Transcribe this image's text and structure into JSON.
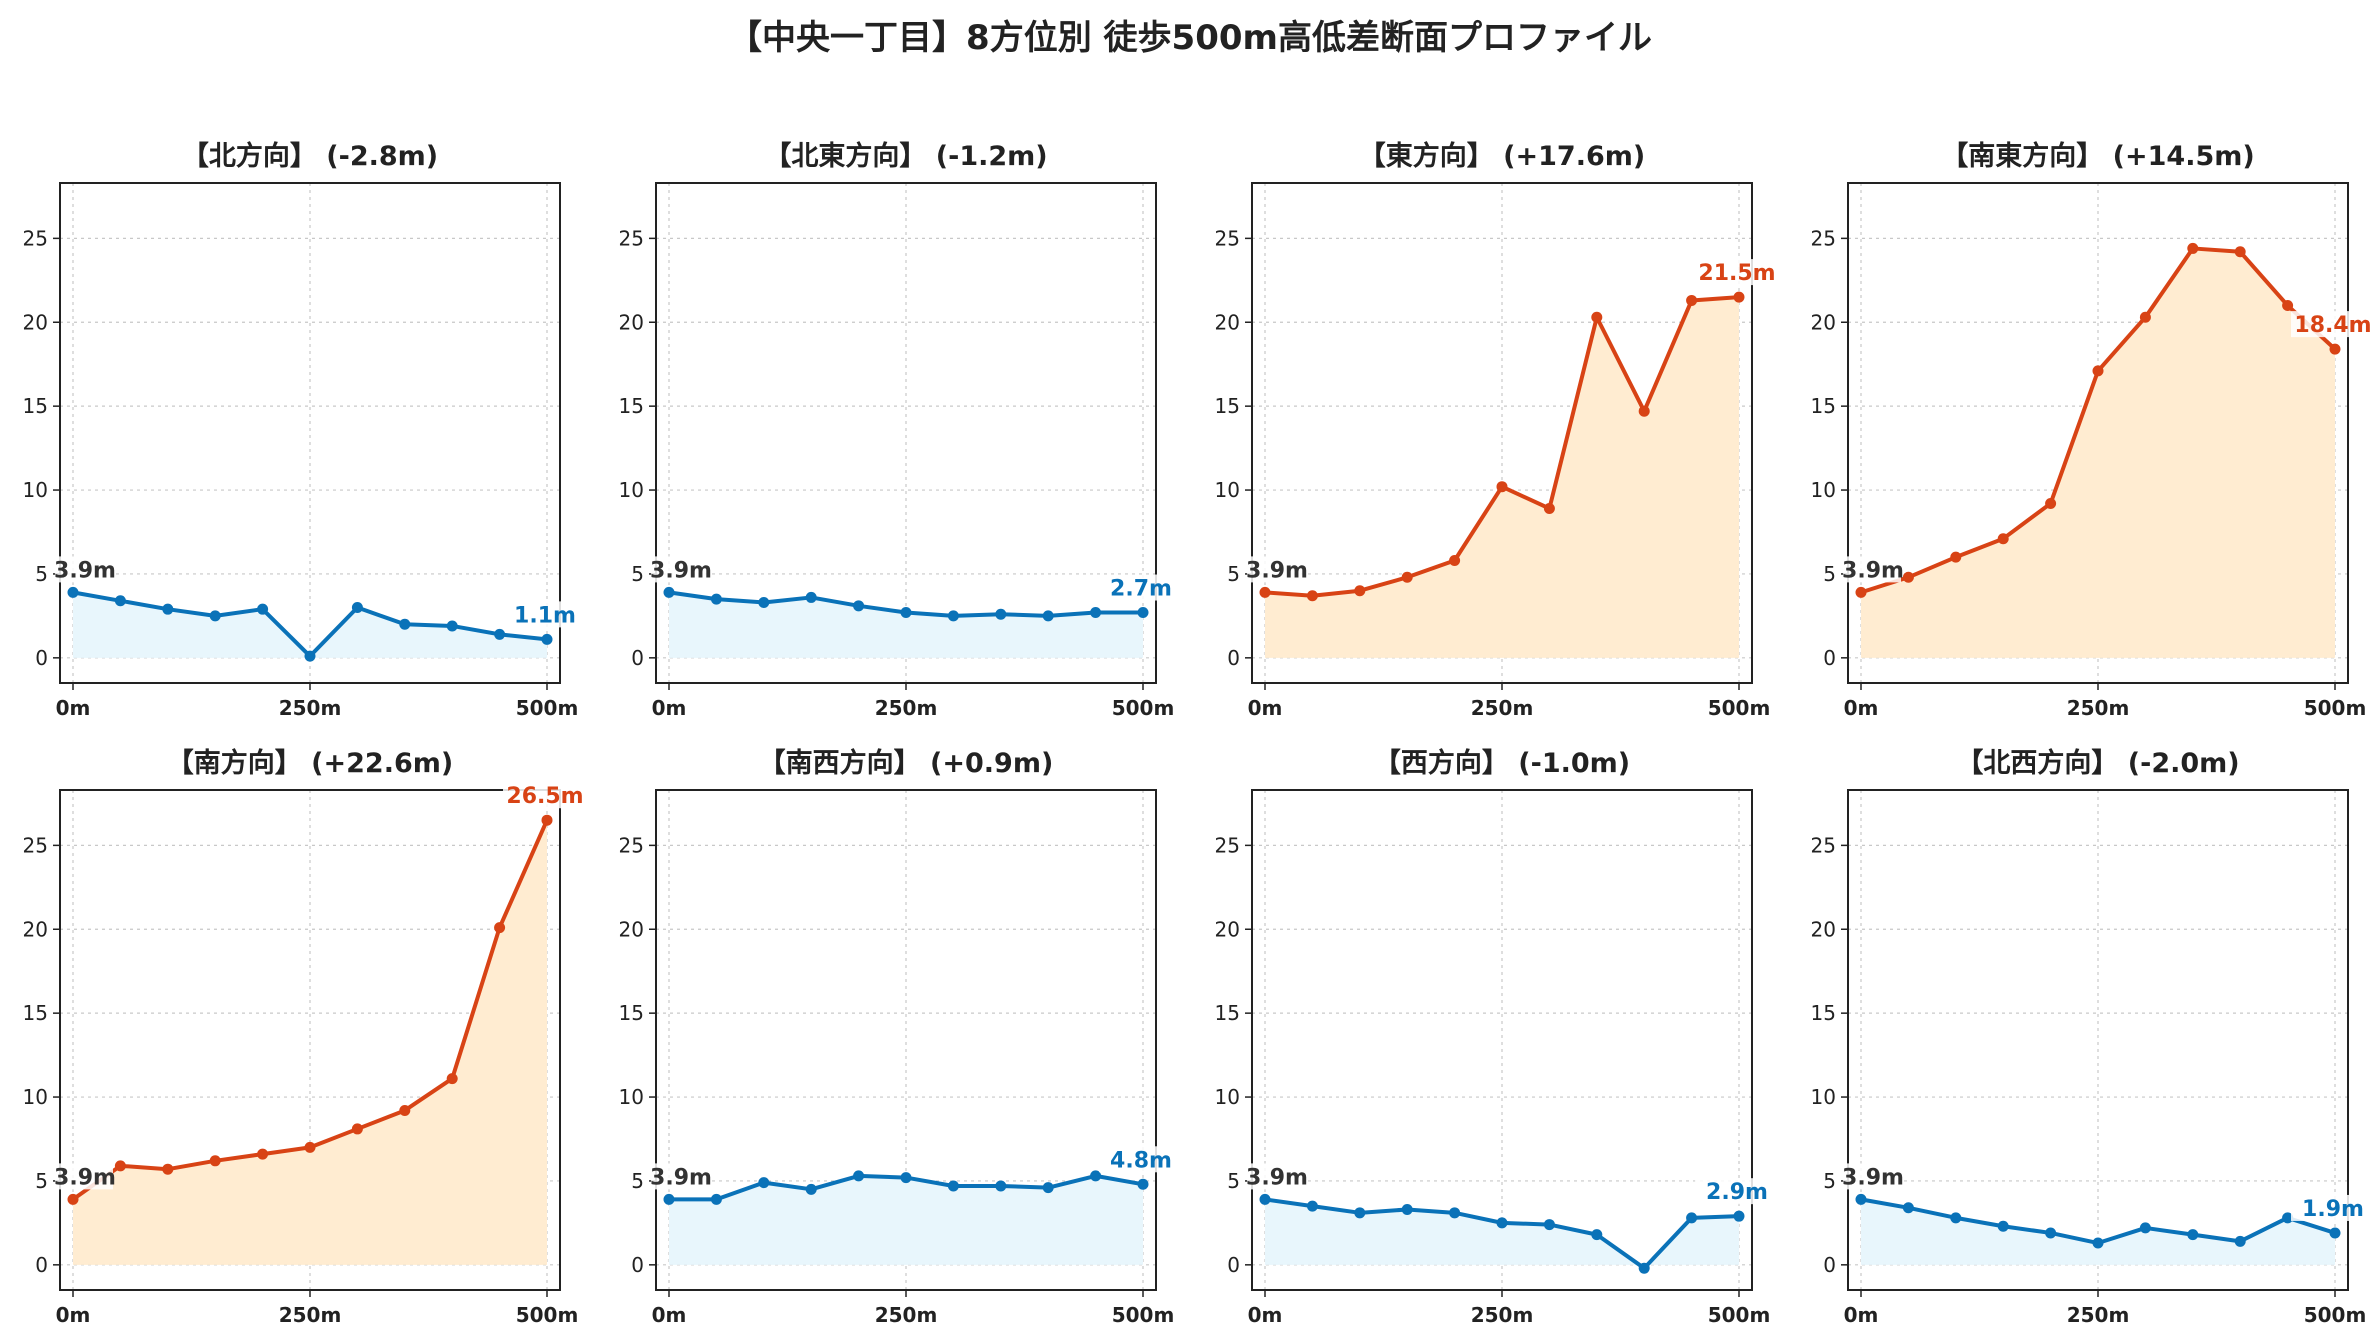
{
  "figure": {
    "title": "【中央一丁目】8方位別 徒歩500m高低差断面プロファイル"
  },
  "colors": {
    "up_line": "#d84315",
    "up_fill": "#ffecd1",
    "down_line": "#0a72b8",
    "down_fill": "#e8f6fc",
    "start_label": "#333333",
    "grid": "#c8c8c8"
  },
  "chart_data": [
    {
      "type": "area",
      "title": "【北方向】 (-2.8m)",
      "trend": "down",
      "x": [
        0,
        50,
        100,
        150,
        200,
        250,
        300,
        350,
        400,
        450,
        500
      ],
      "values": [
        3.9,
        3.4,
        2.9,
        2.5,
        2.9,
        0.1,
        3.0,
        2.0,
        1.9,
        1.4,
        1.1
      ],
      "start_label": "3.9m",
      "end_label": "1.1m",
      "ylim": [
        -1.5,
        28.3
      ],
      "yticks": [
        0,
        5,
        10,
        15,
        20,
        25
      ],
      "xticks": [
        0,
        250,
        500
      ],
      "xtick_labels": [
        "0m",
        "250m",
        "500m"
      ],
      "grid": true
    },
    {
      "type": "area",
      "title": "【北東方向】 (-1.2m)",
      "trend": "down",
      "x": [
        0,
        50,
        100,
        150,
        200,
        250,
        300,
        350,
        400,
        450,
        500
      ],
      "values": [
        3.9,
        3.5,
        3.3,
        3.6,
        3.1,
        2.7,
        2.5,
        2.6,
        2.5,
        2.7,
        2.7
      ],
      "start_label": "3.9m",
      "end_label": "2.7m",
      "ylim": [
        -1.5,
        28.3
      ],
      "yticks": [
        0,
        5,
        10,
        15,
        20,
        25
      ],
      "xticks": [
        0,
        250,
        500
      ],
      "xtick_labels": [
        "0m",
        "250m",
        "500m"
      ],
      "grid": true
    },
    {
      "type": "area",
      "title": "【東方向】 (+17.6m)",
      "trend": "up",
      "x": [
        0,
        50,
        100,
        150,
        200,
        250,
        300,
        350,
        400,
        450,
        500
      ],
      "values": [
        3.9,
        3.7,
        4.0,
        4.8,
        5.8,
        10.2,
        8.9,
        20.3,
        14.7,
        21.3,
        21.5
      ],
      "start_label": "3.9m",
      "end_label": "21.5m",
      "ylim": [
        -1.5,
        28.3
      ],
      "yticks": [
        0,
        5,
        10,
        15,
        20,
        25
      ],
      "xticks": [
        0,
        250,
        500
      ],
      "xtick_labels": [
        "0m",
        "250m",
        "500m"
      ],
      "grid": true
    },
    {
      "type": "area",
      "title": "【南東方向】 (+14.5m)",
      "trend": "up",
      "x": [
        0,
        50,
        100,
        150,
        200,
        250,
        300,
        350,
        400,
        450,
        500
      ],
      "values": [
        3.9,
        4.8,
        6.0,
        7.1,
        9.2,
        17.1,
        20.3,
        24.4,
        24.2,
        21.0,
        18.4
      ],
      "start_label": "3.9m",
      "end_label": "18.4m",
      "ylim": [
        -1.5,
        28.3
      ],
      "yticks": [
        0,
        5,
        10,
        15,
        20,
        25
      ],
      "xticks": [
        0,
        250,
        500
      ],
      "xtick_labels": [
        "0m",
        "250m",
        "500m"
      ],
      "grid": true
    },
    {
      "type": "area",
      "title": "【南方向】 (+22.6m)",
      "trend": "up",
      "x": [
        0,
        50,
        100,
        150,
        200,
        250,
        300,
        350,
        400,
        450,
        500
      ],
      "values": [
        3.9,
        5.9,
        5.7,
        6.2,
        6.6,
        7.0,
        8.1,
        9.2,
        11.1,
        20.1,
        26.5
      ],
      "start_label": "3.9m",
      "end_label": "26.5m",
      "ylim": [
        -1.5,
        28.3
      ],
      "yticks": [
        0,
        5,
        10,
        15,
        20,
        25
      ],
      "xticks": [
        0,
        250,
        500
      ],
      "xtick_labels": [
        "0m",
        "250m",
        "500m"
      ],
      "grid": true
    },
    {
      "type": "area",
      "title": "【南西方向】 (+0.9m)",
      "trend": "down",
      "x": [
        0,
        50,
        100,
        150,
        200,
        250,
        300,
        350,
        400,
        450,
        500
      ],
      "values": [
        3.9,
        3.9,
        4.9,
        4.5,
        5.3,
        5.2,
        4.7,
        4.7,
        4.6,
        5.3,
        4.8
      ],
      "start_label": "3.9m",
      "end_label": "4.8m",
      "ylim": [
        -1.5,
        28.3
      ],
      "yticks": [
        0,
        5,
        10,
        15,
        20,
        25
      ],
      "xticks": [
        0,
        250,
        500
      ],
      "xtick_labels": [
        "0m",
        "250m",
        "500m"
      ],
      "grid": true
    },
    {
      "type": "area",
      "title": "【西方向】 (-1.0m)",
      "trend": "down",
      "x": [
        0,
        50,
        100,
        150,
        200,
        250,
        300,
        350,
        400,
        450,
        500
      ],
      "values": [
        3.9,
        3.5,
        3.1,
        3.3,
        3.1,
        2.5,
        2.4,
        1.8,
        -0.2,
        2.8,
        2.9
      ],
      "start_label": "3.9m",
      "end_label": "2.9m",
      "ylim": [
        -1.5,
        28.3
      ],
      "yticks": [
        0,
        5,
        10,
        15,
        20,
        25
      ],
      "xticks": [
        0,
        250,
        500
      ],
      "xtick_labels": [
        "0m",
        "250m",
        "500m"
      ],
      "grid": true
    },
    {
      "type": "area",
      "title": "【北西方向】 (-2.0m)",
      "trend": "down",
      "x": [
        0,
        50,
        100,
        150,
        200,
        250,
        300,
        350,
        400,
        450,
        500
      ],
      "values": [
        3.9,
        3.4,
        2.8,
        2.3,
        1.9,
        1.3,
        2.2,
        1.8,
        1.4,
        2.8,
        1.9
      ],
      "start_label": "3.9m",
      "end_label": "1.9m",
      "ylim": [
        -1.5,
        28.3
      ],
      "yticks": [
        0,
        5,
        10,
        15,
        20,
        25
      ],
      "xticks": [
        0,
        250,
        500
      ],
      "xtick_labels": [
        "0m",
        "250m",
        "500m"
      ],
      "grid": true
    }
  ]
}
